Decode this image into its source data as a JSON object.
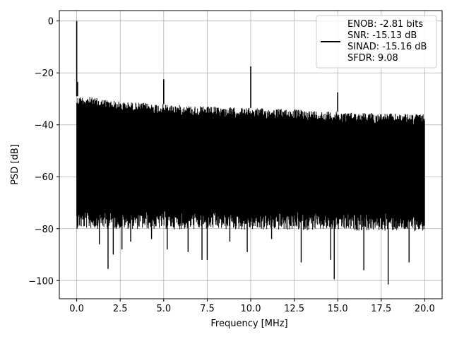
{
  "chart_data": {
    "type": "line",
    "xlabel": "Frequency [MHz]",
    "ylabel": "PSD [dB]",
    "xlim": [
      -1.0,
      21.0
    ],
    "ylim": [
      -107,
      4
    ],
    "x_ticks": [
      0.0,
      2.5,
      5.0,
      7.5,
      10.0,
      12.5,
      15.0,
      17.5,
      20.0
    ],
    "x_tick_labels": [
      "0.0",
      "2.5",
      "5.0",
      "7.5",
      "10.0",
      "12.5",
      "15.0",
      "17.5",
      "20.0"
    ],
    "y_ticks": [
      0,
      -20,
      -40,
      -60,
      -80,
      -100
    ],
    "y_tick_labels": [
      "0",
      "−20",
      "−40",
      "−60",
      "−80",
      "−100"
    ],
    "grid": true,
    "legend_position": "top-right",
    "legend_lines": [
      "ENOB: -2.81 bits",
      "SNR: -15.13 dB",
      "SINAD: -15.16 dB",
      "SFDR: 9.08"
    ],
    "line_color": "#000000",
    "series": [
      {
        "x_start": 0.0,
        "x_end": 20.0,
        "noise_upper_envelope": [
          [
            0.0,
            -29
          ],
          [
            0.5,
            -29
          ],
          [
            2.5,
            -31
          ],
          [
            5.0,
            -32
          ],
          [
            7.5,
            -33
          ],
          [
            10.0,
            -33.5
          ],
          [
            12.5,
            -34
          ],
          [
            15.0,
            -35
          ],
          [
            17.5,
            -35.5
          ],
          [
            20.0,
            -36
          ]
        ],
        "noise_lower_envelope": [
          [
            0.0,
            -73
          ],
          [
            20.0,
            -74
          ]
        ],
        "spikes": [
          {
            "x": 0.0,
            "y": 0
          },
          {
            "x": 0.05,
            "y": -23.5
          },
          {
            "x": 5.0,
            "y": -22.5
          },
          {
            "x": 10.0,
            "y": -17.5
          },
          {
            "x": 15.0,
            "y": -27.5
          }
        ],
        "dips": [
          {
            "x": 0.02,
            "y": -80
          },
          {
            "x": 1.3,
            "y": -86
          },
          {
            "x": 1.8,
            "y": -95.5
          },
          {
            "x": 2.1,
            "y": -90
          },
          {
            "x": 2.6,
            "y": -88
          },
          {
            "x": 3.1,
            "y": -85
          },
          {
            "x": 4.3,
            "y": -84
          },
          {
            "x": 5.2,
            "y": -88
          },
          {
            "x": 6.4,
            "y": -89
          },
          {
            "x": 7.2,
            "y": -92
          },
          {
            "x": 7.5,
            "y": -92
          },
          {
            "x": 8.8,
            "y": -85
          },
          {
            "x": 9.8,
            "y": -89
          },
          {
            "x": 11.2,
            "y": -84
          },
          {
            "x": 12.9,
            "y": -93
          },
          {
            "x": 14.6,
            "y": -92
          },
          {
            "x": 14.8,
            "y": -99.5
          },
          {
            "x": 16.5,
            "y": -96
          },
          {
            "x": 17.9,
            "y": -101.5
          },
          {
            "x": 19.1,
            "y": -93
          }
        ]
      }
    ]
  }
}
